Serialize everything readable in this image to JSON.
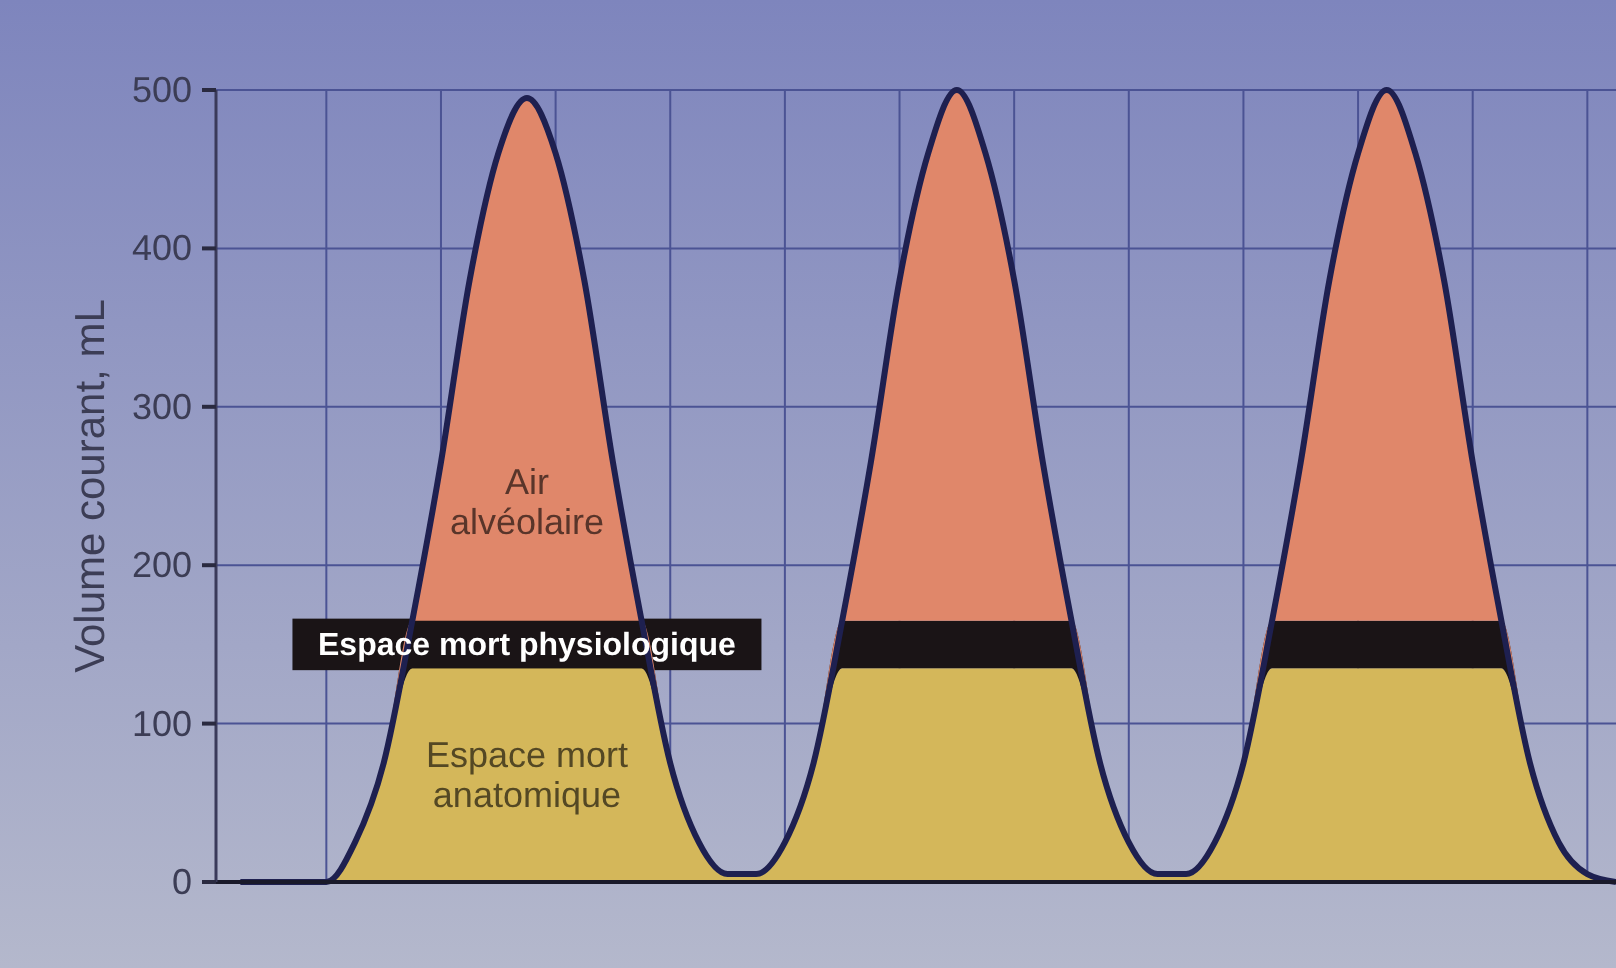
{
  "chart_data": {
    "type": "area",
    "stacked": true,
    "ylabel": "Volume courant, mL",
    "categories": [
      null,
      null,
      null,
      null,
      null,
      null,
      null,
      null,
      null,
      null,
      null,
      null,
      null,
      null,
      null,
      null,
      null,
      null,
      null,
      null,
      null,
      null,
      null,
      null,
      null,
      null,
      null,
      null,
      null,
      null,
      null,
      null,
      null,
      null,
      null,
      null,
      null,
      null,
      null,
      null,
      null,
      null,
      null,
      null,
      null,
      null,
      null,
      null,
      null
    ],
    "series": [
      {
        "name": "Espace mort anatomique",
        "color": "#d4b75a",
        "values": [
          0,
          0,
          0,
          0,
          25,
          75,
          135,
          135,
          135,
          135,
          135,
          135,
          135,
          135,
          135,
          75,
          25,
          5,
          5,
          25,
          75,
          135,
          135,
          135,
          135,
          135,
          135,
          135,
          135,
          135,
          75,
          25,
          5,
          5,
          25,
          75,
          135,
          135,
          135,
          135,
          135,
          135,
          135,
          135,
          135,
          75,
          25,
          5,
          0
        ]
      },
      {
        "name": "Espace mort physiologique",
        "color": "#1a1416",
        "values": [
          0,
          0,
          0,
          0,
          0,
          0,
          30,
          30,
          30,
          30,
          30,
          30,
          30,
          30,
          30,
          0,
          0,
          0,
          0,
          0,
          0,
          30,
          30,
          30,
          30,
          30,
          30,
          30,
          30,
          30,
          0,
          0,
          0,
          0,
          0,
          0,
          30,
          30,
          30,
          30,
          30,
          30,
          30,
          30,
          30,
          0,
          0,
          0,
          0
        ]
      },
      {
        "name": "Air alvéolaire",
        "color": "#e0876a",
        "values": [
          0,
          0,
          0,
          0,
          0,
          0,
          0,
          100,
          215,
          295,
          330,
          295,
          215,
          100,
          0,
          0,
          0,
          0,
          0,
          0,
          0,
          0,
          100,
          215,
          295,
          335,
          295,
          215,
          100,
          0,
          0,
          0,
          0,
          0,
          0,
          0,
          0,
          100,
          215,
          295,
          335,
          295,
          215,
          100,
          0,
          0,
          0,
          0,
          0
        ]
      }
    ],
    "ylim": [
      0,
      500
    ],
    "yticks": [
      0,
      100,
      200,
      300,
      400,
      500
    ],
    "grid": true
  }
}
